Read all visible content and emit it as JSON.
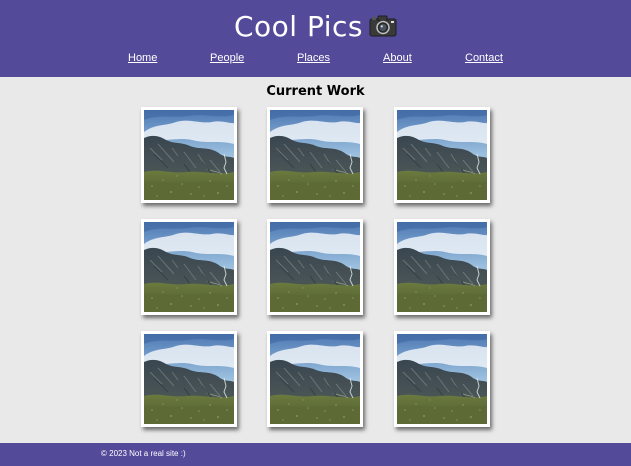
{
  "header": {
    "title": "Cool Pics",
    "title_icon": "camera-icon",
    "background_color": "#534a9a"
  },
  "nav": {
    "items": [
      {
        "label": "Home"
      },
      {
        "label": "People"
      },
      {
        "label": "Places"
      },
      {
        "label": "About"
      },
      {
        "label": "Contact"
      }
    ]
  },
  "main": {
    "heading": "Current Work",
    "gallery": {
      "photo_count": 9,
      "photo_subject": "mountain-landscape"
    }
  },
  "footer": {
    "text": "© 2023 Not a real site :)"
  },
  "colors": {
    "accent": "#534a9a",
    "page_background": "#e9e9e9",
    "text_light": "#ffffff",
    "text_dark": "#000000"
  }
}
